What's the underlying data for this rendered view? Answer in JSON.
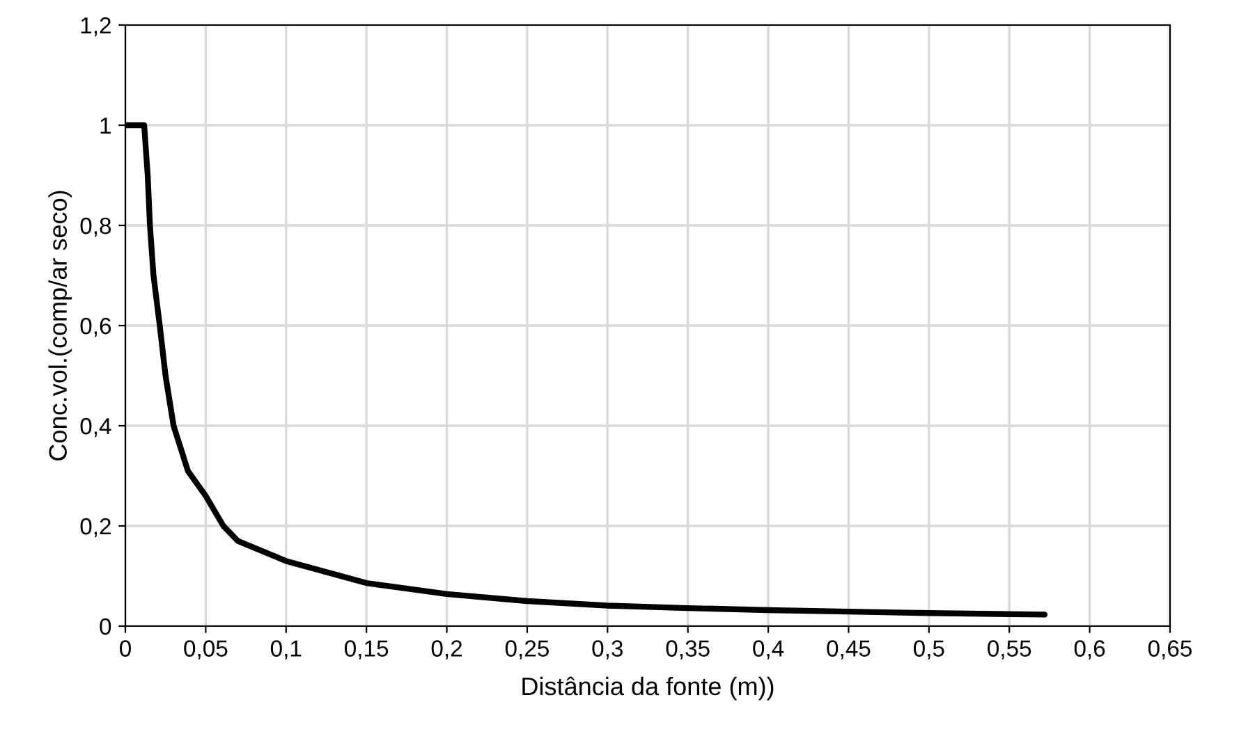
{
  "chart_data": {
    "type": "line",
    "xlabel": "Distância da fonte (m))",
    "ylabel": "Conc.vol.(comp/ar seco)",
    "x": [
      0,
      0.0117,
      0.0139,
      0.0153,
      0.0175,
      0.0214,
      0.025,
      0.03,
      0.0389,
      0.05,
      0.061,
      0.07,
      0.1,
      0.15,
      0.2,
      0.25,
      0.3,
      0.35,
      0.4,
      0.45,
      0.5,
      0.55,
      0.572
    ],
    "series": [
      {
        "color": "#000000",
        "values": [
          1,
          1,
          0.9,
          0.8,
          0.7,
          0.6,
          0.5,
          0.4,
          0.31,
          0.26,
          0.2,
          0.17,
          0.13,
          0.086,
          0.064,
          0.05,
          0.041,
          0.036,
          0.032,
          0.029,
          0.026,
          0.024,
          0.023
        ]
      }
    ],
    "xlim": [
      0,
      0.65
    ],
    "xticks": [
      0,
      {
        "value": 0.05,
        "label": "0,05"
      },
      {
        "value": 0.1,
        "label": "0,1"
      },
      {
        "value": 0.15,
        "label": "0,15"
      },
      {
        "value": 0.2,
        "label": "0,2"
      },
      {
        "value": 0.25,
        "label": "0,25"
      },
      {
        "value": 0.3,
        "label": "0,3"
      },
      {
        "value": 0.35,
        "label": "0,35"
      },
      {
        "value": 0.4,
        "label": "0,4"
      },
      {
        "value": 0.45,
        "label": "0,45"
      },
      {
        "value": 0.5,
        "label": "0,5"
      },
      {
        "value": 0.55,
        "label": "0,55"
      },
      {
        "value": 0.6,
        "label": "0,6"
      },
      {
        "value": 0.65,
        "label": "0,65"
      }
    ],
    "ylim": [
      0,
      1.2
    ],
    "yticks": [
      0,
      {
        "value": 0.2,
        "label": "0,2"
      },
      {
        "value": 0.4,
        "label": "0,4"
      },
      {
        "value": 0.6,
        "label": "0,6"
      },
      {
        "value": 0.8,
        "label": "0,8"
      },
      1,
      {
        "value": 1.2,
        "label": "1,2"
      }
    ],
    "grid": true,
    "marker": "none",
    "line_style": "solid"
  }
}
